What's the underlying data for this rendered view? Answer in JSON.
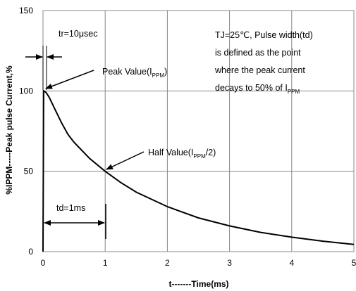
{
  "chart_data": {
    "type": "line",
    "title": "",
    "xlabel": "t-------Time(ms)",
    "ylabel": "%IPPM-----Peak pulse Current,%",
    "xlim": [
      0,
      5
    ],
    "ylim": [
      0,
      150
    ],
    "xticks": [
      "0",
      "1",
      "2",
      "3",
      "4",
      "5"
    ],
    "yticks": [
      "0",
      "50",
      "100",
      "150"
    ],
    "grid": true,
    "series": [
      {
        "x": [
          0,
          0.01,
          0.05,
          0.1,
          0.2,
          0.3,
          0.4,
          0.5,
          0.75,
          1.0,
          1.25,
          1.5,
          2.0,
          2.5,
          3.0,
          3.5,
          4.0,
          4.5,
          5.0
        ],
        "y": [
          0,
          100,
          99,
          96,
          88,
          80,
          73,
          68,
          58,
          50,
          43,
          37,
          28,
          21,
          16,
          12,
          9,
          6.5,
          4.5
        ]
      }
    ],
    "annotations": {
      "rise_time": "tr=10μsec",
      "peak_value": "Peak Value(I",
      "peak_sub": "PPM",
      "peak_close": ")",
      "half_value": "Half Value(I",
      "half_sub": "PPM",
      "half_close": "/2)",
      "duration": "td=1ms",
      "note_line1": "TJ=25℃,  Pulse width(td)",
      "note_line2": "is defined as the point",
      "note_line3": "where the peak current",
      "note_line4": "decays to 50% of I",
      "note_line4_sub": "PPM"
    }
  }
}
